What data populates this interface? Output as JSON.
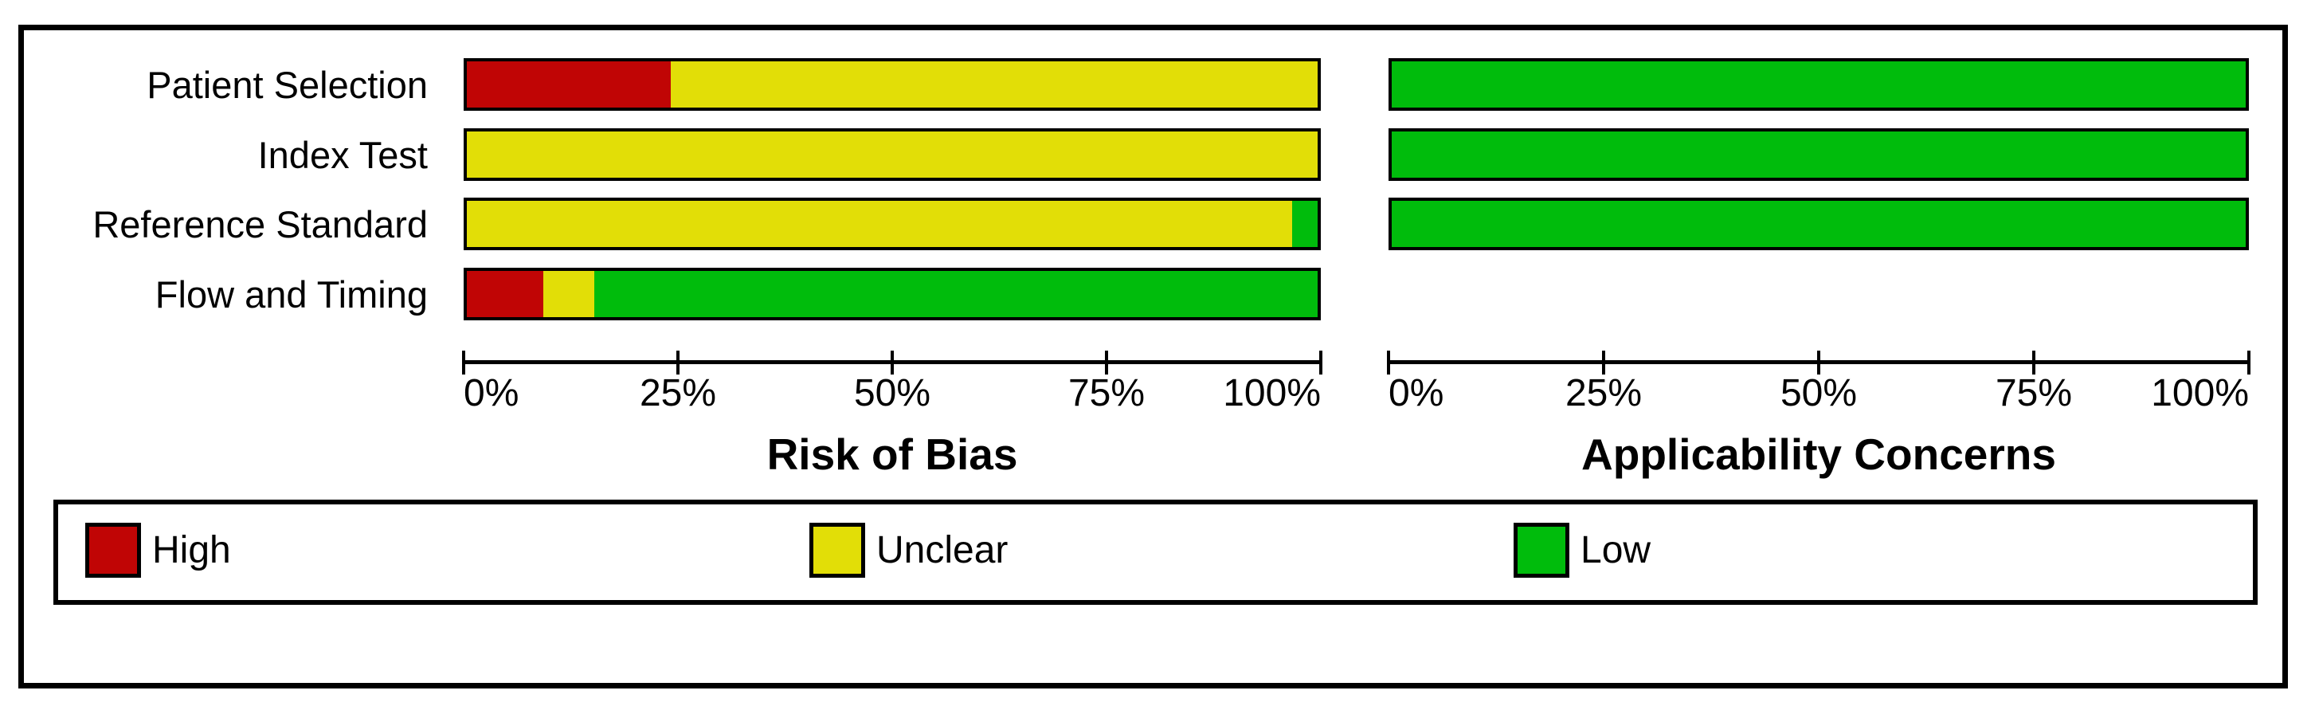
{
  "chart_data": {
    "type": "bar",
    "subtype": "horizontal-stacked-percentage",
    "description": "QUADAS-2 methodological quality summary graph",
    "categories": [
      "Patient Selection",
      "Index Test",
      "Reference Standard",
      "Flow and Timing"
    ],
    "xlim": [
      0,
      100
    ],
    "tick_labels": [
      "0%",
      "25%",
      "50%",
      "75%",
      "100%"
    ],
    "grid": false,
    "legend_position": "bottom",
    "legend": [
      {
        "label": "High",
        "color": "#C00505"
      },
      {
        "label": "Unclear",
        "color": "#E2DE07"
      },
      {
        "label": "Low",
        "color": "#00BC0C"
      }
    ],
    "panels": [
      {
        "title": "Risk of Bias",
        "series": [
          {
            "name": "High",
            "values": [
              24,
              0,
              0,
              9
            ]
          },
          {
            "name": "Unclear",
            "values": [
              76,
              100,
              97,
              6
            ]
          },
          {
            "name": "Low",
            "values": [
              0,
              0,
              3,
              85
            ]
          }
        ]
      },
      {
        "title": "Applicability Concerns",
        "series": [
          {
            "name": "High",
            "values": [
              0,
              0,
              0,
              null
            ]
          },
          {
            "name": "Unclear",
            "values": [
              0,
              0,
              0,
              null
            ]
          },
          {
            "name": "Low",
            "values": [
              100,
              100,
              100,
              null
            ]
          }
        ]
      }
    ]
  }
}
